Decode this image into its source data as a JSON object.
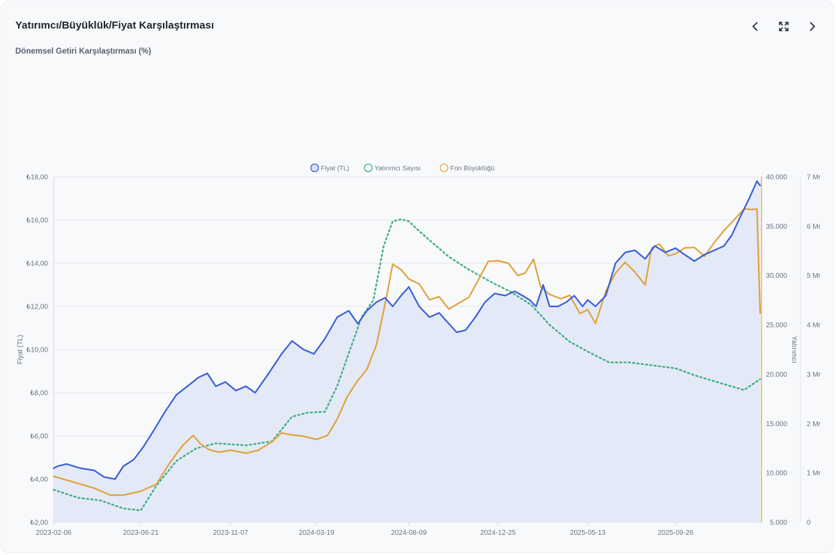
{
  "header": {
    "title": "Yatırımcı/Büyüklük/Fiyat Karşılaştırması",
    "subtitle": "Dönemsel Getiri Karşılaştırması (%)",
    "icons": {
      "prev": "chevron-left-icon",
      "expand": "expand-icon",
      "next": "chevron-right-icon"
    }
  },
  "chart_data": {
    "type": "line",
    "legend": {
      "position": "top-center",
      "items": [
        "Fiyat (TL)",
        "Yatırımcı Sayısı",
        "Fon Büyüklüğü"
      ]
    },
    "x_axis": {
      "type": "date",
      "range": [
        "2023-02-06",
        "2026-02-06"
      ],
      "tick_labels": [
        "2023-02-06",
        "2023-06-21",
        "2023-11-07",
        "2024-03-19",
        "2024-08-09",
        "2024-12-25",
        "2025-05-13",
        "2025-09-26"
      ]
    },
    "y_axes": {
      "left": {
        "label": "Fiyat (TL)",
        "range": [
          2,
          18
        ],
        "tick_labels": [
          "₺2,00",
          "₺4,00",
          "₺6,00",
          "₺8,00",
          "₺10,00",
          "₺12,00",
          "₺14,00",
          "₺16,00",
          "₺18,00"
        ]
      },
      "right": {
        "label": "Yatırımcı",
        "range": [
          5000,
          40000
        ],
        "tick_labels": [
          "5.000",
          "10.000",
          "15.000",
          "20.000",
          "25.000",
          "30.000",
          "35.000",
          "40.000"
        ]
      },
      "right2": {
        "label": "",
        "range": [
          0,
          7
        ],
        "unit": "Mr",
        "tick_labels": [
          "0",
          "1 Mr",
          "2 Mr",
          "3 Mr",
          "4 Mr",
          "5 Mr",
          "6 Mr",
          "7 Mr"
        ]
      }
    },
    "grid": true,
    "series": [
      {
        "name": "Fiyat (TL)",
        "axis": "left",
        "color": "#3a5fd9",
        "fill": "#e4e9f7",
        "style": "solid",
        "x": [
          "2023-02-06",
          "2023-02-12",
          "2023-02-26",
          "2023-03-20",
          "2023-04-10",
          "2023-04-25",
          "2023-05-12",
          "2023-05-25",
          "2023-06-10",
          "2023-06-25",
          "2023-07-12",
          "2023-07-28",
          "2023-08-15",
          "2023-09-01",
          "2023-09-18",
          "2023-10-02",
          "2023-10-15",
          "2023-10-30",
          "2023-11-15",
          "2023-12-01",
          "2023-12-15",
          "2024-01-05",
          "2024-01-25",
          "2024-02-10",
          "2024-02-28",
          "2024-03-15",
          "2024-04-01",
          "2024-04-20",
          "2024-05-08",
          "2024-05-22",
          "2024-06-05",
          "2024-06-20",
          "2024-07-03",
          "2024-07-15",
          "2024-07-28",
          "2024-08-09",
          "2024-08-25",
          "2024-09-10",
          "2024-09-25",
          "2024-10-10",
          "2024-10-22",
          "2024-11-05",
          "2024-11-20",
          "2024-12-05",
          "2024-12-20",
          "2025-01-05",
          "2025-01-20",
          "2025-02-01",
          "2025-02-12",
          "2025-02-22",
          "2025-03-05",
          "2025-03-15",
          "2025-03-28",
          "2025-04-10",
          "2025-04-22",
          "2025-05-05",
          "2025-05-13",
          "2025-05-25",
          "2025-06-10",
          "2025-06-25",
          "2025-07-10",
          "2025-07-25",
          "2025-08-10",
          "2025-08-25",
          "2025-09-10",
          "2025-09-26",
          "2025-10-10",
          "2025-10-25",
          "2025-11-10",
          "2025-11-25",
          "2025-12-10",
          "2025-12-22",
          "2026-01-05",
          "2026-01-18",
          "2026-01-30",
          "2026-02-04"
        ],
        "values": [
          4.5,
          4.6,
          4.7,
          4.5,
          4.4,
          4.1,
          4.0,
          4.6,
          4.9,
          5.5,
          6.3,
          7.1,
          7.9,
          8.3,
          8.7,
          8.9,
          8.3,
          8.5,
          8.1,
          8.3,
          8.0,
          8.9,
          9.8,
          10.4,
          10.0,
          9.8,
          10.5,
          11.5,
          11.8,
          11.2,
          11.8,
          12.2,
          12.4,
          12.0,
          12.5,
          12.9,
          12.0,
          11.5,
          11.7,
          11.2,
          10.8,
          10.9,
          11.5,
          12.2,
          12.6,
          12.5,
          12.7,
          12.5,
          12.3,
          12.0,
          13.0,
          12.0,
          12.0,
          12.2,
          12.5,
          12.0,
          12.3,
          12.0,
          12.5,
          14.0,
          14.5,
          14.6,
          14.2,
          14.8,
          14.5,
          14.7,
          14.4,
          14.1,
          14.4,
          14.6,
          14.8,
          15.3,
          16.2,
          17.0,
          17.8,
          17.6
        ]
      },
      {
        "name": "Yatırımcı Sayısı",
        "axis": "right",
        "color": "#3fae82",
        "style": "dotted",
        "x": [
          "2023-02-06",
          "2023-03-15",
          "2023-04-20",
          "2023-05-25",
          "2023-06-21",
          "2023-07-15",
          "2023-08-15",
          "2023-09-15",
          "2023-10-15",
          "2023-11-07",
          "2023-12-01",
          "2024-01-10",
          "2024-02-10",
          "2024-03-05",
          "2024-04-01",
          "2024-04-20",
          "2024-05-10",
          "2024-05-28",
          "2024-06-15",
          "2024-07-01",
          "2024-07-15",
          "2024-07-28",
          "2024-08-09",
          "2024-08-25",
          "2024-09-15",
          "2024-10-10",
          "2024-11-10",
          "2024-12-10",
          "2025-01-15",
          "2025-02-15",
          "2025-03-15",
          "2025-04-15",
          "2025-05-13",
          "2025-06-15",
          "2025-07-15",
          "2025-08-10",
          "2025-09-26",
          "2025-10-30",
          "2025-12-10",
          "2026-01-10",
          "2026-02-04"
        ],
        "values": [
          8300,
          7500,
          7200,
          6400,
          6200,
          8700,
          11200,
          12500,
          13000,
          12900,
          12800,
          13200,
          15700,
          16100,
          16200,
          18800,
          22500,
          25800,
          27500,
          33000,
          35500,
          35700,
          35500,
          34500,
          33300,
          31900,
          30600,
          29500,
          28300,
          27000,
          25000,
          23300,
          22300,
          21200,
          21200,
          21000,
          20600,
          19800,
          19000,
          18400,
          19500
        ]
      },
      {
        "name": "Fon Büyüklüğü",
        "axis": "right2",
        "color": "#e1a23a",
        "style": "solid",
        "unit": "Mr",
        "x": [
          "2023-02-06",
          "2023-03-10",
          "2023-04-10",
          "2023-05-05",
          "2023-05-25",
          "2023-06-21",
          "2023-07-15",
          "2023-08-05",
          "2023-08-25",
          "2023-09-10",
          "2023-09-22",
          "2023-10-05",
          "2023-10-20",
          "2023-11-07",
          "2023-12-01",
          "2023-12-20",
          "2024-01-10",
          "2024-01-25",
          "2024-02-10",
          "2024-02-25",
          "2024-03-19",
          "2024-04-05",
          "2024-04-20",
          "2024-05-05",
          "2024-05-20",
          "2024-06-05",
          "2024-06-20",
          "2024-07-05",
          "2024-07-15",
          "2024-07-28",
          "2024-08-09",
          "2024-08-25",
          "2024-09-10",
          "2024-09-25",
          "2024-10-10",
          "2024-10-25",
          "2024-11-10",
          "2024-11-25",
          "2024-12-10",
          "2024-12-25",
          "2025-01-10",
          "2025-01-25",
          "2025-02-05",
          "2025-02-18",
          "2025-03-01",
          "2025-03-15",
          "2025-04-01",
          "2025-04-15",
          "2025-05-01",
          "2025-05-13",
          "2025-05-25",
          "2025-06-10",
          "2025-06-25",
          "2025-07-10",
          "2025-07-25",
          "2025-08-10",
          "2025-08-20",
          "2025-09-01",
          "2025-09-15",
          "2025-09-26",
          "2025-10-10",
          "2025-10-25",
          "2025-11-10",
          "2025-11-25",
          "2025-12-10",
          "2025-12-25",
          "2026-01-10",
          "2026-01-22",
          "2026-01-30",
          "2026-02-04"
        ],
        "values": [
          0.93,
          0.81,
          0.69,
          0.55,
          0.55,
          0.63,
          0.77,
          1.21,
          1.56,
          1.76,
          1.58,
          1.47,
          1.42,
          1.46,
          1.4,
          1.46,
          1.63,
          1.81,
          1.77,
          1.75,
          1.68,
          1.76,
          2.09,
          2.53,
          2.84,
          3.1,
          3.6,
          4.54,
          5.23,
          5.12,
          4.93,
          4.83,
          4.51,
          4.57,
          4.32,
          4.44,
          4.56,
          4.92,
          5.29,
          5.3,
          5.25,
          5.0,
          5.05,
          5.33,
          4.77,
          4.62,
          4.53,
          4.6,
          4.23,
          4.31,
          4.03,
          4.68,
          5.05,
          5.27,
          5.07,
          4.81,
          5.56,
          5.64,
          5.4,
          5.44,
          5.56,
          5.57,
          5.39,
          5.67,
          5.91,
          6.12,
          6.35,
          6.34,
          6.35,
          4.24
        ]
      }
    ]
  }
}
